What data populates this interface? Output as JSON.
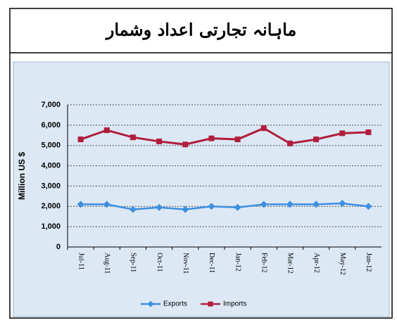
{
  "chart_data": {
    "type": "line",
    "title": "ماہانہ تجارتی اعداد وشمار",
    "y_label": "Million US $",
    "categories": [
      "Jul-11",
      "Aug-11",
      "Sep-11",
      "Oct-11",
      "Nov-11",
      "Dec-11",
      "Jan-12",
      "Feb-12",
      "Mar-12",
      "Apr-12",
      "May-12",
      "Jun-12"
    ],
    "series": [
      {
        "name": "Exports",
        "color": "#3d8fe0",
        "marker": "diamond",
        "values": [
          2100,
          2100,
          1850,
          1950,
          1850,
          2000,
          1950,
          2100,
          2100,
          2100,
          2150,
          2000
        ]
      },
      {
        "name": "Imports",
        "color": "#b01e3c",
        "marker": "square",
        "values": [
          5300,
          5750,
          5400,
          5200,
          5050,
          5350,
          5300,
          5850,
          5100,
          5300,
          5600,
          5650
        ]
      }
    ],
    "ylim": [
      0,
      7000
    ],
    "yticks": [
      0,
      {
        "value": 1000,
        "label": "1,000"
      },
      {
        "value": 2000,
        "label": "2,000"
      },
      {
        "value": 3000,
        "label": "3,000"
      },
      {
        "value": 4000,
        "label": "4,000"
      },
      {
        "value": 5000,
        "label": "5,000"
      },
      {
        "value": 6000,
        "label": "6,000"
      },
      {
        "value": 7000,
        "label": "7,000"
      }
    ],
    "grid": true,
    "legend": "bottom"
  }
}
